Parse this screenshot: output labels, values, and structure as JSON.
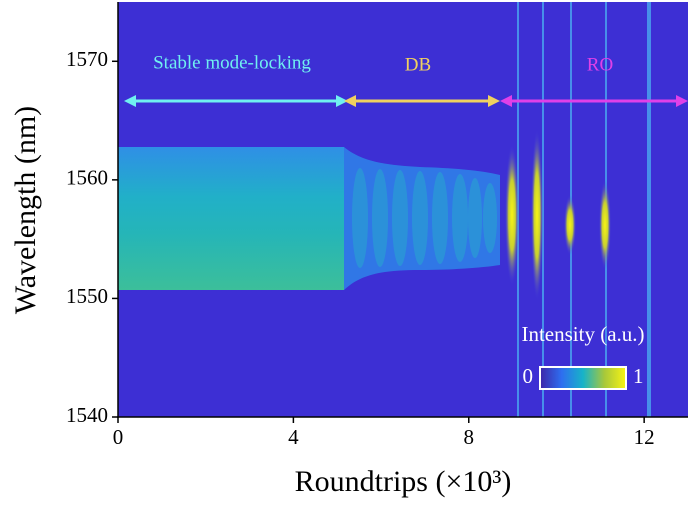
{
  "chart_data": {
    "type": "heatmap",
    "xlabel": "Roundtrips (×10³)",
    "ylabel": "Wavelength (nm)",
    "xlim": [
      0,
      13
    ],
    "xticks": [
      0,
      4,
      8,
      12
    ],
    "ylim": [
      1540,
      1575
    ],
    "yticks": [
      1540,
      1550,
      1560,
      1570
    ],
    "annotations": [
      "Stable mode-locking",
      "DB",
      "RO"
    ],
    "colorbar": {
      "label": "Intensity (a.u.)",
      "clim": [
        0,
        1
      ],
      "ticks": [
        0,
        1
      ]
    }
  }
}
